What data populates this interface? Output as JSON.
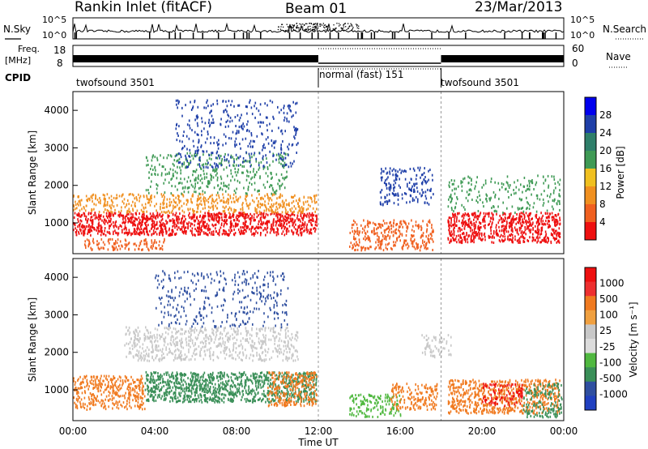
{
  "header": {
    "station": "Rankin Inlet (fitACF)",
    "beam": "Beam 01",
    "date": "23/Mar/2013"
  },
  "noise_panel": {
    "left_label": "N.Sky",
    "right_label": "N.Search",
    "left_ticks": [
      "10^5",
      "10^0"
    ],
    "right_ticks": [
      "10^5",
      "10^0"
    ]
  },
  "freq_panel": {
    "left_label_1": "Freq.",
    "left_label_2": "[MHz]",
    "left_ticks": [
      "18",
      "8"
    ],
    "right_label": "Nave",
    "right_ticks": [
      "60",
      "0"
    ]
  },
  "cpid_panel": {
    "label": "CPID",
    "segments": [
      {
        "name": "twofsound 3501",
        "start_hour": 0,
        "end_hour": 12
      },
      {
        "name": "normal (fast) 151",
        "start_hour": 12,
        "end_hour": 18
      },
      {
        "name": "twofsound 3501",
        "start_hour": 18,
        "end_hour": 24
      }
    ]
  },
  "colors": {
    "power_scale": [
      "#0000ee",
      "#1f3fa8",
      "#2f7f6a",
      "#3f9a55",
      "#f0c020",
      "#f09020",
      "#f06020",
      "#ee1010"
    ],
    "velocity_scale": [
      "#ee1010",
      "#ee3030",
      "#f07a20",
      "#f0a040",
      "#c8c8c8",
      "#dcdcdc",
      "#50b840",
      "#3a8f58",
      "#2f4fa0",
      "#2040c0"
    ]
  },
  "chart_data": [
    {
      "type": "heatmap",
      "panel": "power",
      "x_label": "",
      "y_label": "Slant Range [km]",
      "x_range_hours": [
        0,
        24
      ],
      "y_range_km": [
        180,
        4500
      ],
      "y_ticks": [
        "1000",
        "2000",
        "3000",
        "4000"
      ],
      "colorbar_label": "Power [dB]",
      "colorbar_ticks": [
        "28",
        "24",
        "20",
        "16",
        "12",
        "8",
        "4"
      ],
      "scatter_regions": [
        {
          "t0": 0.0,
          "t1": 11.9,
          "r0": 700,
          "r1": 1300,
          "color": "#ee1010",
          "density": 0.85
        },
        {
          "t0": 0.0,
          "t1": 11.9,
          "r0": 1300,
          "r1": 1800,
          "color": "#f09020",
          "density": 0.45
        },
        {
          "t0": 0.5,
          "t1": 4.5,
          "r0": 300,
          "r1": 600,
          "color": "#f06020",
          "density": 0.5
        },
        {
          "t0": 3.5,
          "t1": 10.5,
          "r0": 1800,
          "r1": 2900,
          "color": "#3f9a55",
          "density": 0.25
        },
        {
          "t0": 5.0,
          "t1": 11.0,
          "r0": 2500,
          "r1": 4300,
          "color": "#1f3fa8",
          "density": 0.18
        },
        {
          "t0": 13.5,
          "t1": 17.6,
          "r0": 300,
          "r1": 1100,
          "color": "#f06020",
          "density": 0.5
        },
        {
          "t0": 15.0,
          "t1": 17.6,
          "r0": 1500,
          "r1": 2500,
          "color": "#1f3fa8",
          "density": 0.35
        },
        {
          "t0": 18.3,
          "t1": 23.8,
          "r0": 500,
          "r1": 1300,
          "color": "#ee1010",
          "density": 0.8
        },
        {
          "t0": 18.3,
          "t1": 23.8,
          "r0": 1300,
          "r1": 2300,
          "color": "#3f9a55",
          "density": 0.2
        }
      ]
    },
    {
      "type": "heatmap",
      "panel": "velocity",
      "x_label": "Time UT",
      "x_ticks": [
        "00:00",
        "04:00",
        "08:00",
        "12:00",
        "16:00",
        "20:00",
        "00:00"
      ],
      "y_label": "Slant Range [km]",
      "x_range_hours": [
        0,
        24
      ],
      "y_range_km": [
        180,
        4500
      ],
      "y_ticks": [
        "1000",
        "2000",
        "3000",
        "4000"
      ],
      "colorbar_label": "Velocity [m s⁻¹]",
      "colorbar_ticks": [
        "1000",
        "500",
        "100",
        "25",
        "-25",
        "-100",
        "-500",
        "-1000"
      ],
      "scatter_regions": [
        {
          "t0": 0.0,
          "t1": 3.5,
          "r0": 500,
          "r1": 1400,
          "color": "#f07a20",
          "density": 0.6
        },
        {
          "t0": 3.5,
          "t1": 11.9,
          "r0": 700,
          "r1": 1500,
          "color": "#3a8f58",
          "density": 0.8
        },
        {
          "t0": 9.5,
          "t1": 11.9,
          "r0": 600,
          "r1": 1500,
          "color": "#f07a20",
          "density": 0.6
        },
        {
          "t0": 2.5,
          "t1": 11.0,
          "r0": 1800,
          "r1": 2700,
          "color": "#c8c8c8",
          "density": 0.45
        },
        {
          "t0": 4.0,
          "t1": 10.5,
          "r0": 2700,
          "r1": 4200,
          "color": "#2f4fa0",
          "density": 0.18
        },
        {
          "t0": 13.5,
          "t1": 16.0,
          "r0": 300,
          "r1": 900,
          "color": "#50b840",
          "density": 0.5
        },
        {
          "t0": 15.5,
          "t1": 17.8,
          "r0": 500,
          "r1": 1200,
          "color": "#f07a20",
          "density": 0.55
        },
        {
          "t0": 17.0,
          "t1": 18.5,
          "r0": 1900,
          "r1": 2500,
          "color": "#c8c8c8",
          "density": 0.35
        },
        {
          "t0": 18.3,
          "t1": 23.8,
          "r0": 400,
          "r1": 1300,
          "color": "#f07a20",
          "density": 0.65
        },
        {
          "t0": 20.0,
          "t1": 22.0,
          "r0": 600,
          "r1": 1200,
          "color": "#ee1010",
          "density": 0.4
        },
        {
          "t0": 22.0,
          "t1": 23.9,
          "r0": 300,
          "r1": 1200,
          "color": "#3a8f58",
          "density": 0.45
        }
      ]
    }
  ]
}
